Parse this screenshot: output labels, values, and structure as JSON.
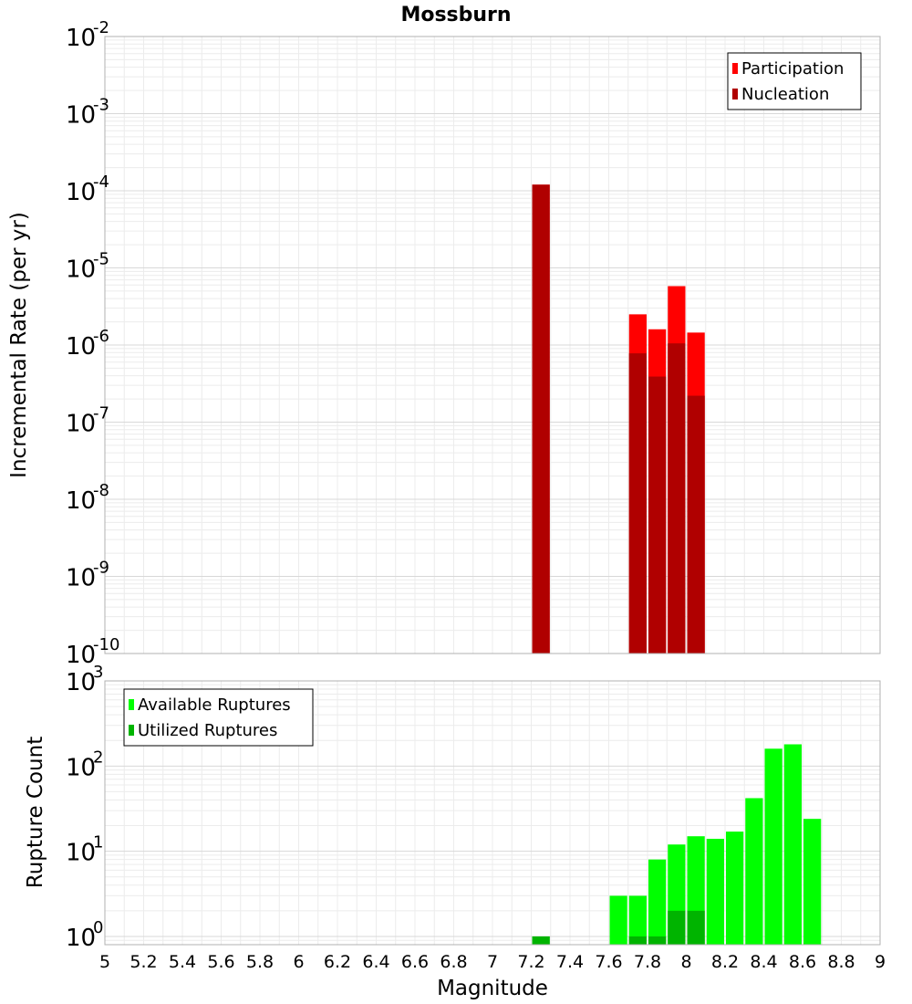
{
  "chart_data": [
    {
      "type": "bar",
      "title": "Mossburn",
      "xlabel": "",
      "ylabel": "Incremental Rate (per yr)",
      "yscale": "log",
      "ylim": [
        1e-10,
        0.01
      ],
      "xlim": [
        5,
        9
      ],
      "bar_width": 0.1,
      "y_ticks": [
        {
          "base": "10",
          "exp": "-10",
          "value": 1e-10
        },
        {
          "base": "10",
          "exp": "-9",
          "value": 1e-09
        },
        {
          "base": "10",
          "exp": "-8",
          "value": 1e-08
        },
        {
          "base": "10",
          "exp": "-7",
          "value": 1e-07
        },
        {
          "base": "10",
          "exp": "-6",
          "value": 1e-06
        },
        {
          "base": "10",
          "exp": "-5",
          "value": 1e-05
        },
        {
          "base": "10",
          "exp": "-4",
          "value": 0.0001
        },
        {
          "base": "10",
          "exp": "-3",
          "value": 0.001
        },
        {
          "base": "10",
          "exp": "-2",
          "value": 0.01
        }
      ],
      "legend": {
        "position": "top-right"
      },
      "series": [
        {
          "name": "Participation",
          "color": "#ff0000",
          "x": [
            7.25,
            7.75,
            7.85,
            7.95,
            8.05
          ],
          "values": [
            0.00012,
            2.5e-06,
            1.6e-06,
            5.8e-06,
            1.45e-06
          ]
        },
        {
          "name": "Nucleation",
          "color": "#b00000",
          "x": [
            7.25,
            7.75,
            7.85,
            7.95,
            8.05
          ],
          "values": [
            0.00012,
            7.8e-07,
            3.9e-07,
            1.05e-06,
            2.2e-07
          ]
        }
      ]
    },
    {
      "type": "bar",
      "xlabel": "Magnitude",
      "ylabel": "Rupture Count",
      "yscale": "log",
      "ylim": [
        0.8,
        1000
      ],
      "xlim": [
        5,
        9
      ],
      "bar_width": 0.1,
      "y_ticks": [
        {
          "base": "10",
          "exp": "0",
          "value": 1
        },
        {
          "base": "10",
          "exp": "1",
          "value": 10
        },
        {
          "base": "10",
          "exp": "2",
          "value": 100
        },
        {
          "base": "10",
          "exp": "3",
          "value": 1000
        }
      ],
      "x_ticks": [
        "5",
        "5.2",
        "5.4",
        "5.6",
        "5.8",
        "6",
        "6.2",
        "6.4",
        "6.6",
        "6.8",
        "7",
        "7.2",
        "7.4",
        "7.6",
        "7.8",
        "8",
        "8.2",
        "8.4",
        "8.6",
        "8.8",
        "9"
      ],
      "legend": {
        "position": "top-left"
      },
      "series": [
        {
          "name": "Available Ruptures",
          "color": "#00ff00",
          "x": [
            7.25,
            7.65,
            7.75,
            7.85,
            7.95,
            8.05,
            8.15,
            8.25,
            8.35,
            8.45,
            8.55,
            8.65
          ],
          "values": [
            1,
            3,
            3,
            8,
            12,
            15,
            14,
            17,
            42,
            160,
            180,
            24
          ]
        },
        {
          "name": "Utilized Ruptures",
          "color": "#00b400",
          "x": [
            7.25,
            7.75,
            7.85,
            7.95,
            8.05
          ],
          "values": [
            1,
            1,
            1,
            2,
            2
          ]
        }
      ]
    }
  ]
}
